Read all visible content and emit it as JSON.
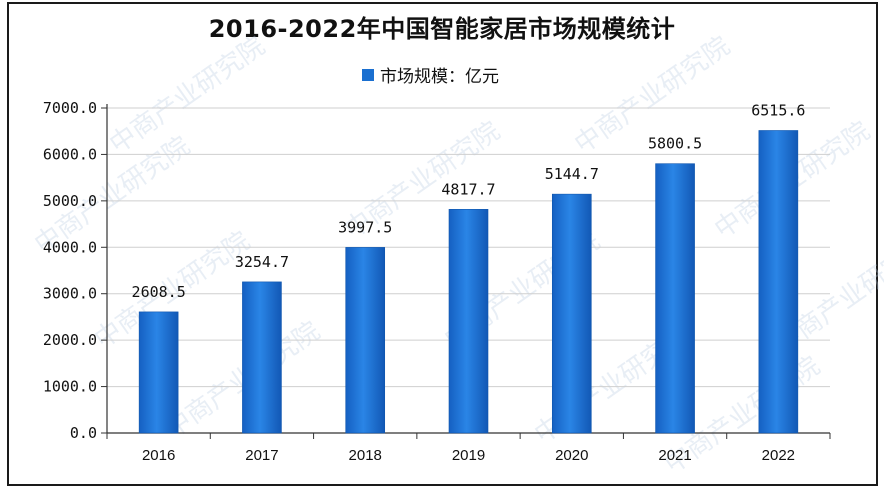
{
  "title": "2016-2022年中国智能家居市场规模统计",
  "legend": {
    "label": "市场规模：亿元"
  },
  "colors": {
    "bar": "#1a6fd0",
    "bar_edge": "#0f56ad",
    "axis": "#333333",
    "grid": "#cfcfcf"
  },
  "watermark": {
    "text": "中商产业研究院"
  },
  "chart_data": {
    "type": "bar",
    "title": "2016-2022年中国智能家居市场规模统计",
    "categories": [
      "2016",
      "2017",
      "2018",
      "2019",
      "2020",
      "2021",
      "2022"
    ],
    "tick_labels": [
      "2016",
      "2017",
      "2018",
      "2019",
      "2020",
      "2021",
      "2022"
    ],
    "series": [
      {
        "name": "市场规模：亿元",
        "values": [
          2608.5,
          3254.7,
          3997.5,
          4817.7,
          5144.7,
          5800.5,
          6515.6
        ]
      }
    ],
    "value_labels": [
      "2608.5",
      "3254.7",
      "3997.5",
      "4817.7",
      "5144.7",
      "5800.5",
      "6515.6"
    ],
    "yticks": [
      0,
      1000,
      2000,
      3000,
      4000,
      5000,
      6000,
      7000
    ],
    "ytick_labels": [
      "0.0",
      "1000.0",
      "2000.0",
      "3000.0",
      "4000.0",
      "5000.0",
      "6000.0",
      "7000.0"
    ],
    "ylim": [
      0,
      7000
    ],
    "xlabel": "",
    "ylabel": "",
    "grid": true,
    "legend_position": "top-center"
  }
}
